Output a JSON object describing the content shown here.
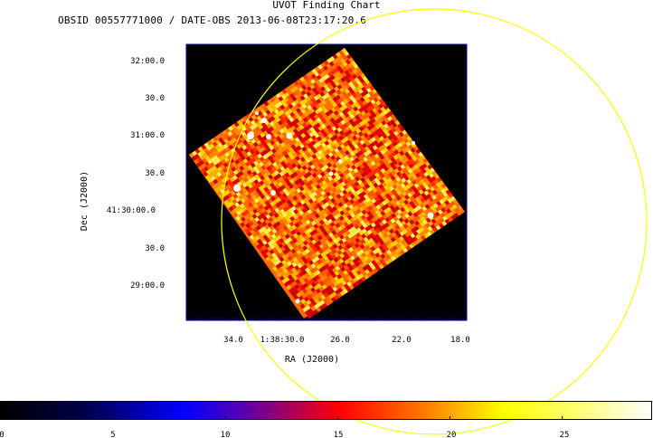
{
  "chart_data": {
    "type": "heatmap",
    "title": "UVOT Finding Chart",
    "subtitle": "OBSID 00557771000 / DATE-OBS 2013-06-08T23:17:20.6",
    "xlabel": "RA (J2000)",
    "ylabel": "Dec (J2000)",
    "x_ticks": [
      "34.0",
      "1:38:30.0",
      "26.0",
      "22.0",
      "18.0"
    ],
    "y_ticks": [
      "32:00.0",
      "30.0",
      "31:00.0",
      "30.0",
      "41:30:00.0",
      "30.0",
      "29:00.0"
    ],
    "colorbar": {
      "range": [
        0,
        29
      ],
      "ticks": [
        "0",
        "5",
        "10",
        "15",
        "20",
        "25"
      ],
      "colormap": [
        "#000000",
        "#0000ff",
        "#ff0000",
        "#ffff00",
        "#ffffff"
      ]
    },
    "grid": false,
    "overlay": "yellow circle",
    "colors": {
      "background": "#000000",
      "frame": "#0000aa",
      "circle": "#ffff00"
    }
  }
}
